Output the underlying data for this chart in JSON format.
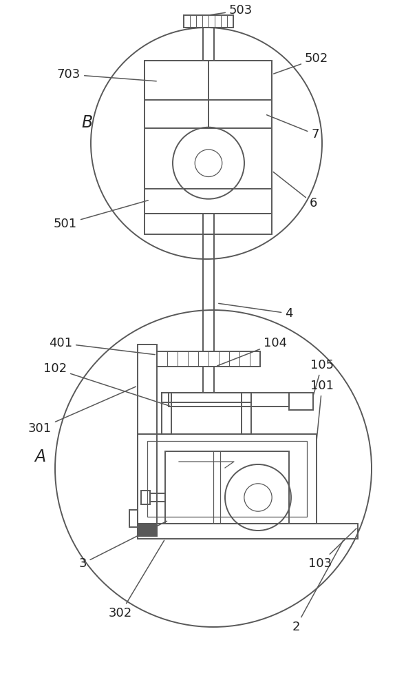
{
  "bg_color": "#ffffff",
  "lc": "#595959",
  "lw": 1.4,
  "lw_thin": 0.9,
  "fig_w": 6.06,
  "fig_h": 10.0
}
